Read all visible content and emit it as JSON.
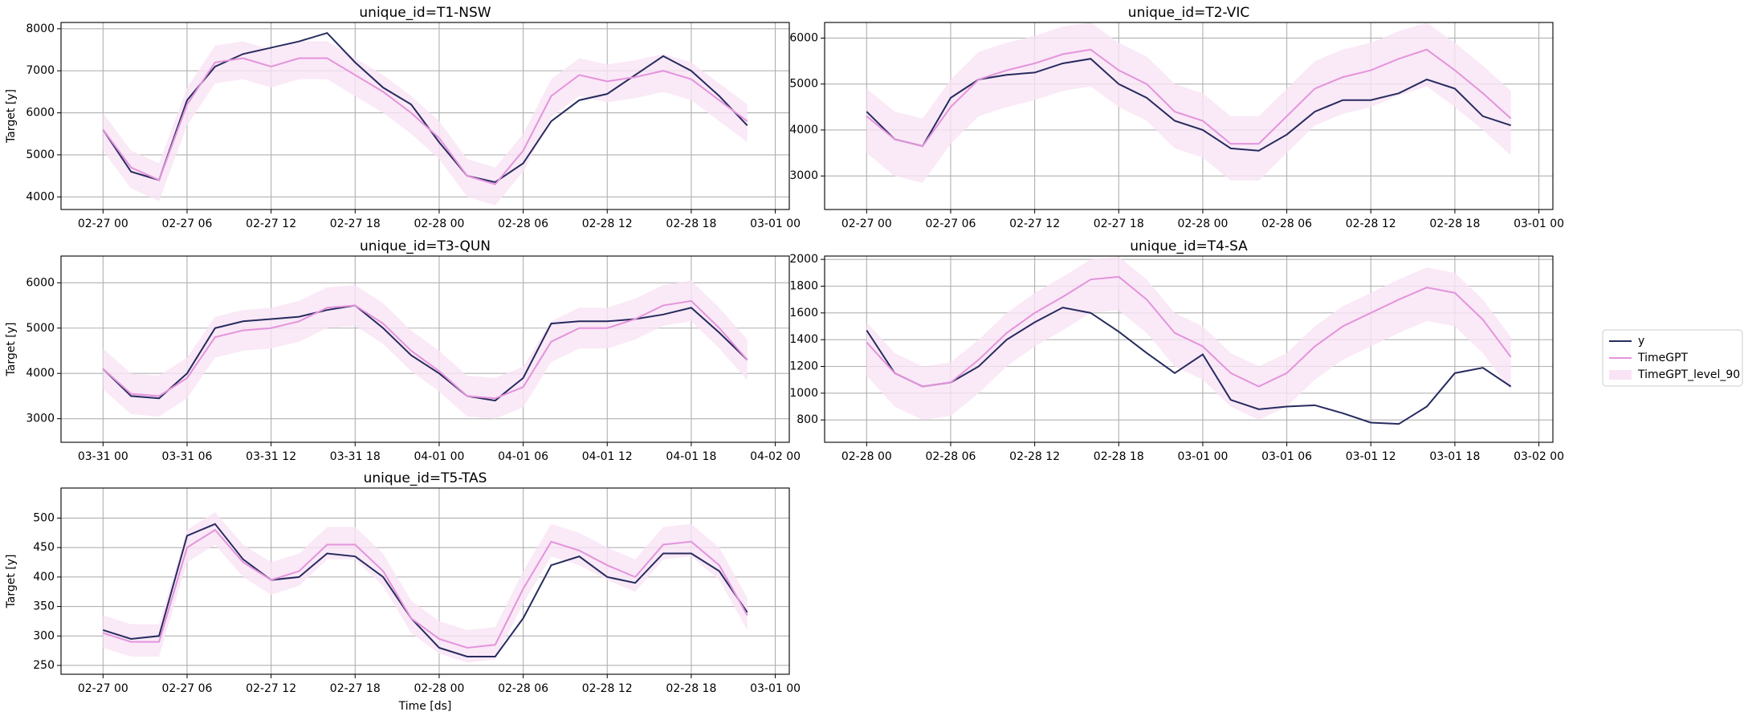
{
  "chart_data": [
    {
      "type": "line",
      "title": "unique_id=T1-NSW",
      "ylabel": "Target [y]",
      "grid": true,
      "legend": "outside right",
      "x": [
        "02-27 00",
        "02-27 02",
        "02-27 04",
        "02-27 06",
        "02-27 08",
        "02-27 10",
        "02-27 12",
        "02-27 14",
        "02-27 16",
        "02-27 18",
        "02-27 20",
        "02-27 22",
        "02-28 00",
        "02-28 02",
        "02-28 04",
        "02-28 06",
        "02-28 08",
        "02-28 10",
        "02-28 12",
        "02-28 14",
        "02-28 16",
        "02-28 18",
        "02-28 20",
        "02-28 22"
      ],
      "xlim": [
        "02-26 21",
        "03-01 01"
      ],
      "xticks": [
        "02-27 00",
        "02-27 06",
        "02-27 12",
        "02-27 18",
        "02-28 00",
        "02-28 06",
        "02-28 12",
        "02-28 18",
        "03-01 00"
      ],
      "ylim": [
        3700,
        8150
      ],
      "yticks": [
        4000,
        5000,
        6000,
        7000,
        8000
      ],
      "series": [
        {
          "name": "y",
          "color": "#262b5e",
          "values": [
            5600,
            4600,
            4400,
            6300,
            7100,
            7400,
            7550,
            7700,
            7900,
            7200,
            6600,
            6200,
            5300,
            4500,
            4350,
            4800,
            5800,
            6300,
            6450,
            6900,
            7350,
            7000,
            6400,
            5700
          ]
        },
        {
          "name": "TimeGPT",
          "color": "#e394db",
          "values": [
            5600,
            4700,
            4400,
            6200,
            7200,
            7300,
            7100,
            7300,
            7300,
            6900,
            6500,
            6000,
            5400,
            4500,
            4300,
            5100,
            6400,
            6900,
            6750,
            6850,
            7000,
            6800,
            6300,
            5800
          ]
        },
        {
          "name": "TimeGPT_level_90",
          "color": "#f9e4f5",
          "lower": [
            5100,
            4200,
            3900,
            5700,
            6700,
            6800,
            6600,
            6800,
            6800,
            6400,
            6000,
            5500,
            4900,
            4000,
            3800,
            4600,
            5900,
            6400,
            6250,
            6350,
            6500,
            6300,
            5800,
            5300
          ],
          "upper": [
            6000,
            5100,
            4800,
            6600,
            7600,
            7700,
            7500,
            7700,
            7700,
            7300,
            6900,
            6400,
            5800,
            4900,
            4700,
            5500,
            6800,
            7300,
            7150,
            7250,
            7400,
            7200,
            6700,
            6200
          ]
        }
      ]
    },
    {
      "type": "line",
      "title": "unique_id=T2-VIC",
      "grid": true,
      "x": [
        "02-27 00",
        "02-27 02",
        "02-27 04",
        "02-27 06",
        "02-27 08",
        "02-27 10",
        "02-27 12",
        "02-27 14",
        "02-27 16",
        "02-27 18",
        "02-27 20",
        "02-27 22",
        "02-28 00",
        "02-28 02",
        "02-28 04",
        "02-28 06",
        "02-28 08",
        "02-28 10",
        "02-28 12",
        "02-28 14",
        "02-28 16",
        "02-28 18",
        "02-28 20",
        "02-28 22"
      ],
      "xlim": [
        "02-26 21",
        "03-01 01"
      ],
      "xticks": [
        "02-27 00",
        "02-27 06",
        "02-27 12",
        "02-27 18",
        "02-28 00",
        "02-28 06",
        "02-28 12",
        "02-28 18",
        "03-01 00"
      ],
      "ylim": [
        2270,
        6340
      ],
      "yticks": [
        3000,
        4000,
        5000,
        6000
      ],
      "series": [
        {
          "name": "y",
          "color": "#262b5e",
          "values": [
            4400,
            3800,
            3650,
            4700,
            5100,
            5200,
            5250,
            5450,
            5550,
            5000,
            4700,
            4200,
            4000,
            3600,
            3550,
            3900,
            4400,
            4650,
            4650,
            4800,
            5100,
            4900,
            4300,
            4100
          ]
        },
        {
          "name": "TimeGPT",
          "color": "#e394db",
          "values": [
            4300,
            3800,
            3650,
            4500,
            5100,
            5300,
            5450,
            5650,
            5750,
            5300,
            5000,
            4400,
            4200,
            3700,
            3700,
            4300,
            4900,
            5150,
            5300,
            5550,
            5750,
            5300,
            4800,
            4250
          ]
        },
        {
          "name": "TimeGPT_level_90",
          "color": "#f9e4f5",
          "lower": [
            3500,
            3000,
            2850,
            3700,
            4300,
            4500,
            4650,
            4850,
            4950,
            4500,
            4200,
            3600,
            3400,
            2900,
            2900,
            3500,
            4100,
            4350,
            4500,
            4750,
            4950,
            4500,
            4000,
            3450
          ],
          "upper": [
            4900,
            4400,
            4250,
            5100,
            5700,
            5900,
            6050,
            6250,
            6340,
            5900,
            5600,
            5000,
            4800,
            4300,
            4300,
            4900,
            5500,
            5750,
            5900,
            6150,
            6340,
            5900,
            5400,
            4850
          ]
        }
      ]
    },
    {
      "type": "line",
      "title": "unique_id=T3-QUN",
      "ylabel": "Target [y]",
      "grid": true,
      "x": [
        "03-31 00",
        "03-31 02",
        "03-31 04",
        "03-31 06",
        "03-31 08",
        "03-31 10",
        "03-31 12",
        "03-31 14",
        "03-31 16",
        "03-31 18",
        "03-31 20",
        "03-31 22",
        "04-01 00",
        "04-01 02",
        "04-01 04",
        "04-01 06",
        "04-01 08",
        "04-01 10",
        "04-01 12",
        "04-01 14",
        "04-01 16",
        "04-01 18",
        "04-01 20",
        "04-01 22"
      ],
      "xlim": [
        "03-30 21",
        "04-02 01"
      ],
      "xticks": [
        "03-31 00",
        "03-31 06",
        "03-31 12",
        "03-31 18",
        "04-01 00",
        "04-01 06",
        "04-01 12",
        "04-01 18",
        "04-02 00"
      ],
      "ylim": [
        2480,
        6590
      ],
      "yticks": [
        3000,
        4000,
        5000,
        6000
      ],
      "series": [
        {
          "name": "y",
          "color": "#262b5e",
          "values": [
            4100,
            3500,
            3450,
            4000,
            5000,
            5150,
            5200,
            5250,
            5400,
            5500,
            5000,
            4400,
            4000,
            3500,
            3400,
            3900,
            5100,
            5150,
            5150,
            5200,
            5300,
            5450,
            4900,
            4300
          ]
        },
        {
          "name": "TimeGPT",
          "color": "#e394db",
          "values": [
            4100,
            3550,
            3500,
            3900,
            4800,
            4950,
            5000,
            5150,
            5450,
            5500,
            5100,
            4500,
            4050,
            3500,
            3450,
            3700,
            4700,
            5000,
            5000,
            5200,
            5500,
            5600,
            5000,
            4300
          ]
        },
        {
          "name": "TimeGPT_level_90",
          "color": "#f9e4f5",
          "lower": [
            3650,
            3100,
            3050,
            3450,
            4350,
            4500,
            4550,
            4700,
            5000,
            5050,
            4650,
            4050,
            3600,
            3050,
            3000,
            3250,
            4250,
            4550,
            4550,
            4750,
            5050,
            5150,
            4550,
            3850
          ],
          "upper": [
            4550,
            4000,
            3950,
            4350,
            5250,
            5400,
            5450,
            5600,
            5900,
            5950,
            5550,
            4950,
            4500,
            3950,
            3900,
            4150,
            5150,
            5450,
            5450,
            5650,
            5950,
            6050,
            5450,
            4750
          ]
        }
      ]
    },
    {
      "type": "line",
      "title": "unique_id=T4-SA",
      "grid": true,
      "x": [
        "02-28 00",
        "02-28 02",
        "02-28 04",
        "02-28 06",
        "02-28 08",
        "02-28 10",
        "02-28 12",
        "02-28 14",
        "02-28 16",
        "02-28 18",
        "02-28 20",
        "02-28 22",
        "03-01 00",
        "03-01 02",
        "03-01 04",
        "03-01 06",
        "03-01 08",
        "03-01 10",
        "03-01 12",
        "03-01 14",
        "03-01 16",
        "03-01 18",
        "03-01 20",
        "03-01 22"
      ],
      "xlim": [
        "02-27 21",
        "03-02 01"
      ],
      "xticks": [
        "02-28 00",
        "02-28 06",
        "02-28 12",
        "02-28 18",
        "03-01 00",
        "03-01 06",
        "03-01 12",
        "03-01 18",
        "03-02 00"
      ],
      "ylim": [
        633,
        2025
      ],
      "yticks": [
        800,
        1000,
        1200,
        1400,
        1600,
        1800,
        2000
      ],
      "series": [
        {
          "name": "y",
          "color": "#262b5e",
          "values": [
            1470,
            1150,
            1050,
            1080,
            1200,
            1400,
            1530,
            1640,
            1600,
            1460,
            1300,
            1150,
            1290,
            950,
            880,
            900,
            910,
            850,
            780,
            770,
            900,
            1150,
            1190,
            1050
          ]
        },
        {
          "name": "TimeGPT",
          "color": "#e394db",
          "values": [
            1380,
            1150,
            1050,
            1080,
            1250,
            1450,
            1600,
            1720,
            1850,
            1870,
            1700,
            1450,
            1350,
            1150,
            1050,
            1150,
            1350,
            1500,
            1600,
            1700,
            1790,
            1750,
            1550,
            1270
          ]
        },
        {
          "name": "TimeGPT_level_90",
          "color": "#f9e4f5",
          "lower": [
            1130,
            900,
            800,
            830,
            1000,
            1200,
            1350,
            1470,
            1600,
            1620,
            1450,
            1200,
            1100,
            900,
            800,
            900,
            1100,
            1250,
            1350,
            1450,
            1540,
            1500,
            1300,
            1020
          ],
          "upper": [
            1530,
            1300,
            1200,
            1230,
            1400,
            1600,
            1750,
            1870,
            2000,
            2020,
            1850,
            1600,
            1500,
            1300,
            1200,
            1300,
            1500,
            1650,
            1750,
            1850,
            1940,
            1900,
            1700,
            1420
          ]
        }
      ]
    },
    {
      "type": "line",
      "title": "unique_id=T5-TAS",
      "ylabel": "Target [y]",
      "xlabel": "Time [ds]",
      "grid": true,
      "x": [
        "02-27 00",
        "02-27 02",
        "02-27 04",
        "02-27 06",
        "02-27 08",
        "02-27 10",
        "02-27 12",
        "02-27 14",
        "02-27 16",
        "02-27 18",
        "02-27 20",
        "02-27 22",
        "02-28 00",
        "02-28 02",
        "02-28 04",
        "02-28 06",
        "02-28 08",
        "02-28 10",
        "02-28 12",
        "02-28 14",
        "02-28 16",
        "02-28 18",
        "02-28 20",
        "02-28 22"
      ],
      "xlim": [
        "02-26 21",
        "03-01 01"
      ],
      "xticks": [
        "02-27 00",
        "02-27 06",
        "02-27 12",
        "02-27 18",
        "02-28 00",
        "02-28 06",
        "02-28 12",
        "02-28 18",
        "03-01 00"
      ],
      "ylim": [
        235,
        551
      ],
      "yticks": [
        250,
        300,
        350,
        400,
        450,
        500
      ],
      "series": [
        {
          "name": "y",
          "color": "#262b5e",
          "values": [
            310,
            295,
            300,
            470,
            490,
            430,
            395,
            400,
            440,
            435,
            400,
            330,
            280,
            265,
            265,
            330,
            420,
            435,
            400,
            390,
            440,
            440,
            410,
            340
          ]
        },
        {
          "name": "TimeGPT",
          "color": "#e394db",
          "values": [
            305,
            290,
            290,
            450,
            480,
            425,
            395,
            410,
            455,
            455,
            410,
            330,
            295,
            280,
            285,
            380,
            460,
            445,
            420,
            400,
            455,
            460,
            420,
            335
          ]
        },
        {
          "name": "TimeGPT_level_90",
          "color": "#f9e4f5",
          "lower": [
            280,
            265,
            265,
            425,
            455,
            400,
            370,
            385,
            430,
            430,
            385,
            305,
            270,
            255,
            260,
            355,
            435,
            420,
            395,
            375,
            430,
            435,
            395,
            310
          ],
          "upper": [
            335,
            320,
            320,
            480,
            510,
            455,
            425,
            440,
            485,
            485,
            440,
            360,
            325,
            310,
            315,
            410,
            490,
            475,
            450,
            430,
            485,
            490,
            450,
            365
          ]
        }
      ]
    }
  ]
}
